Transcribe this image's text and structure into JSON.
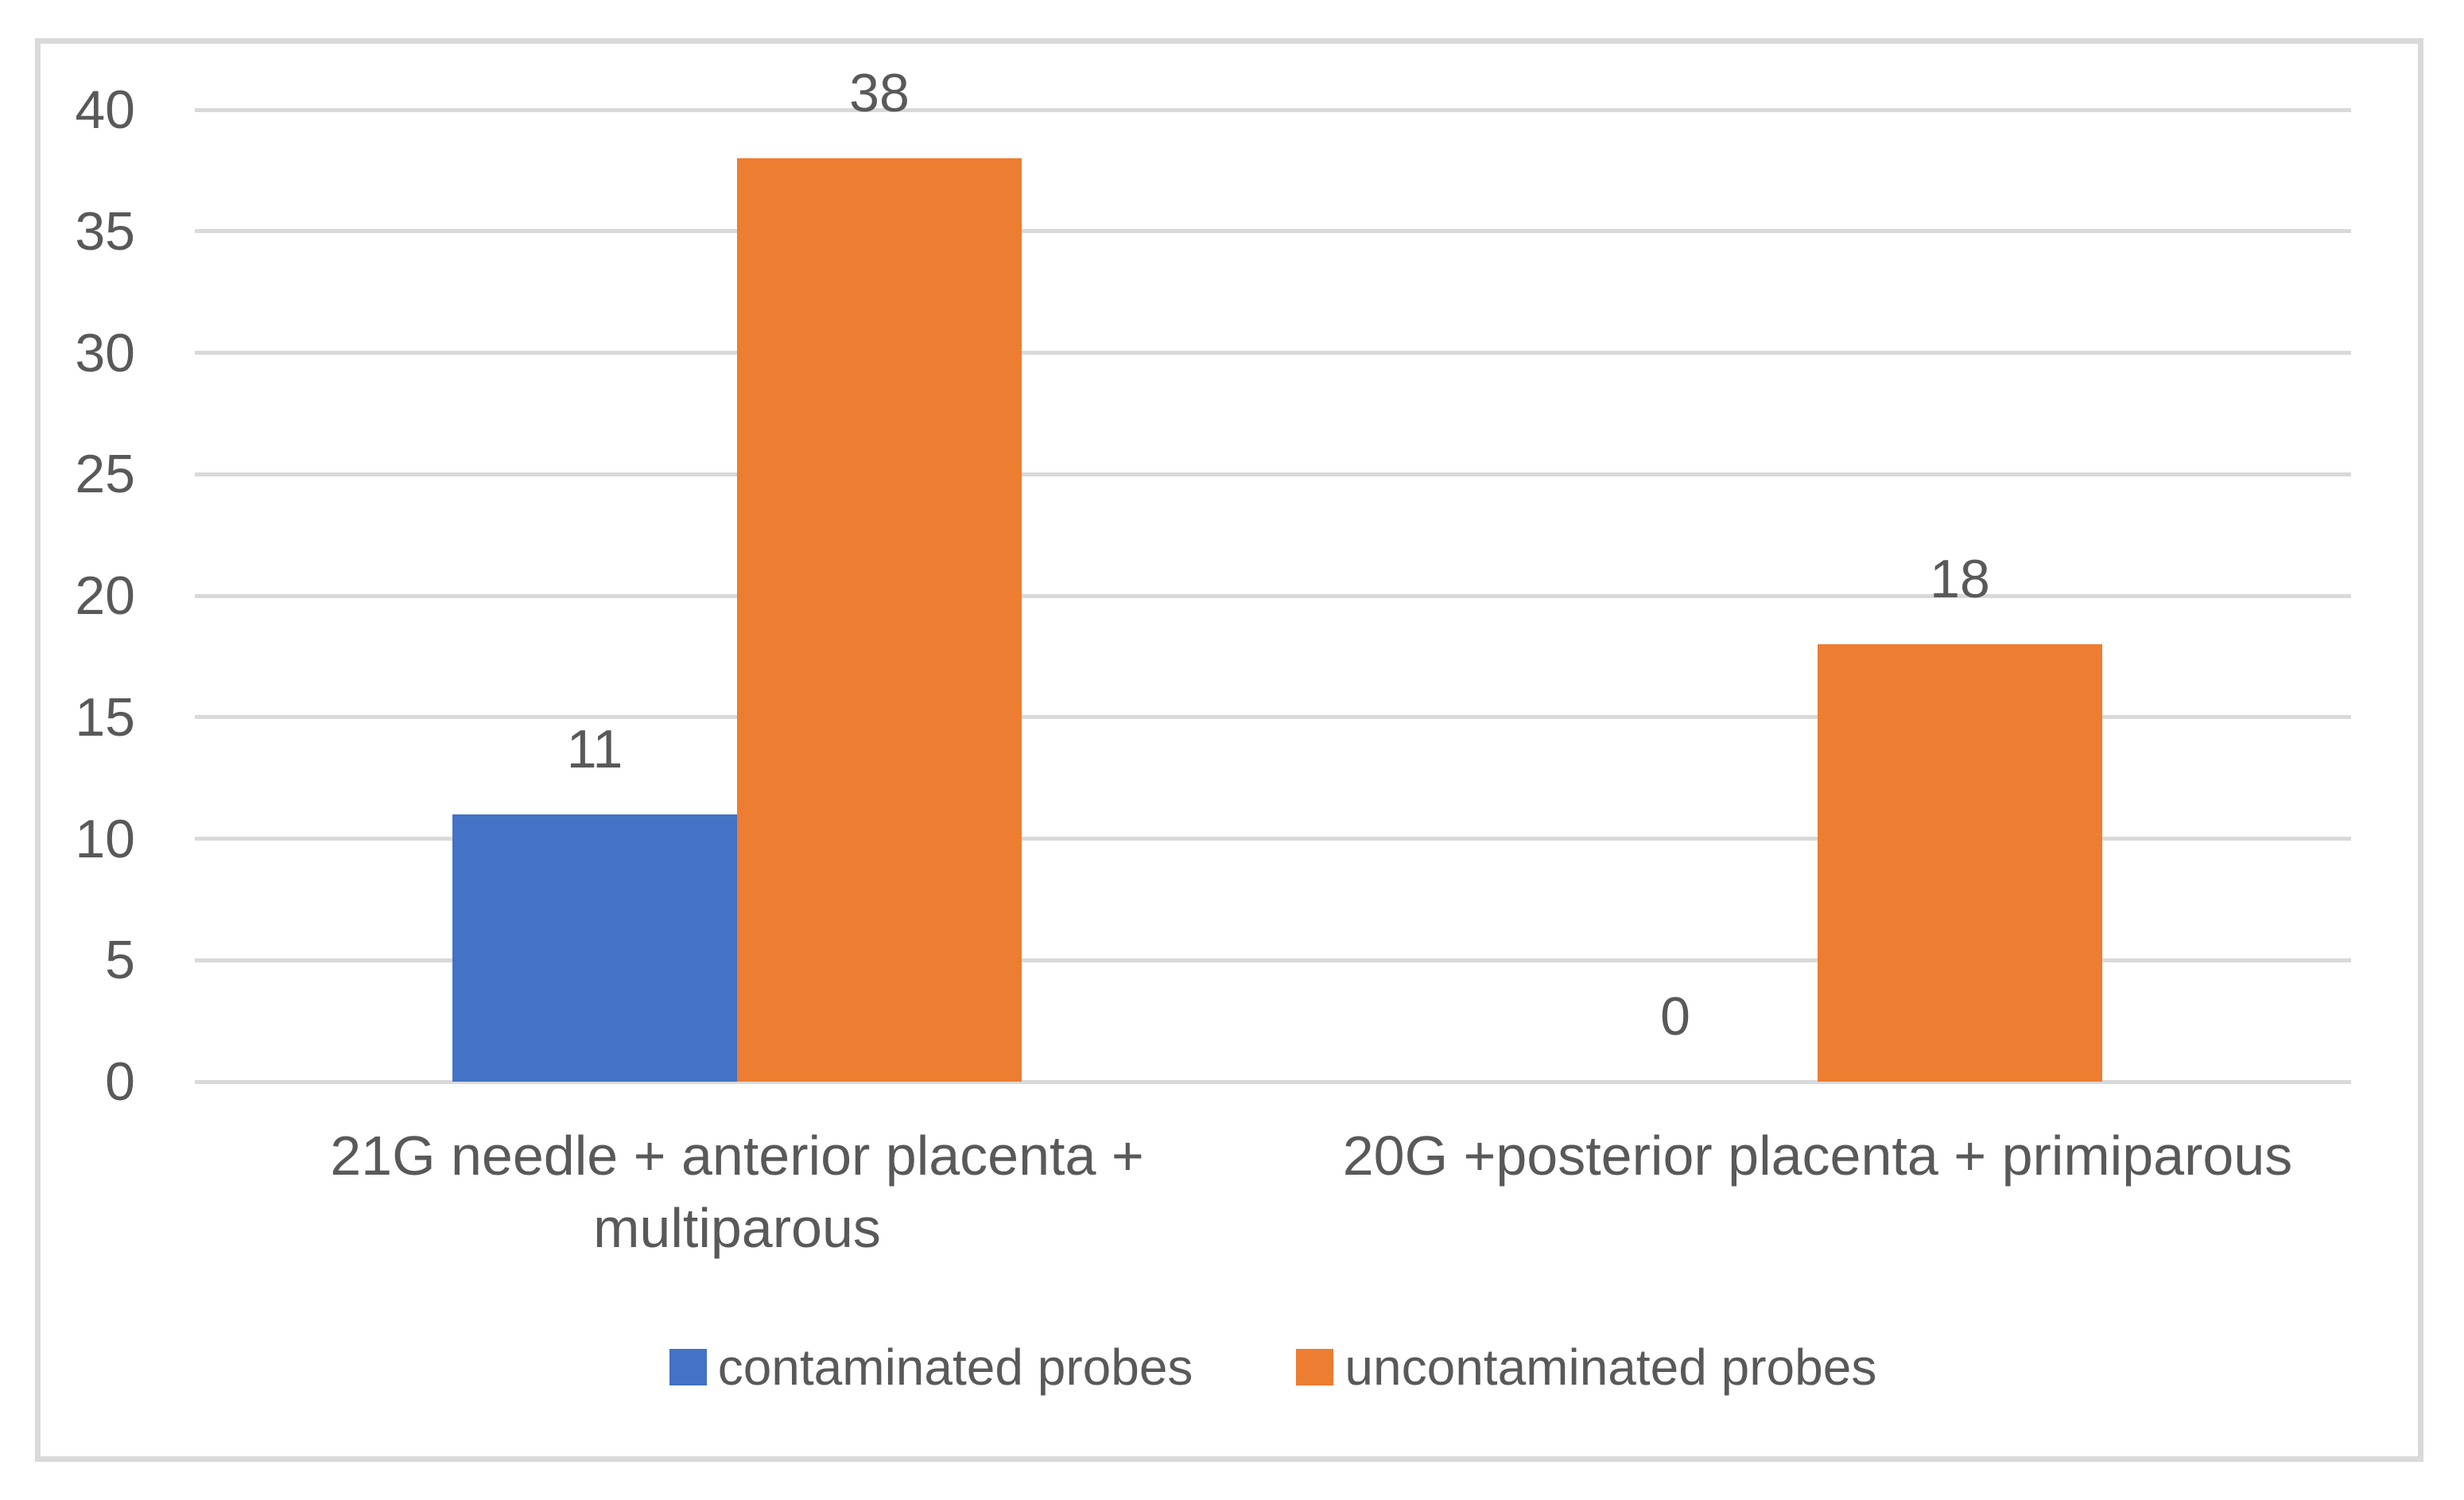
{
  "chart_data": {
    "type": "bar",
    "title": "",
    "categories": [
      [
        "21G needle + anterior placenta +",
        "multiparous"
      ],
      [
        "20G +posterior placenta + primiparous"
      ]
    ],
    "series": [
      {
        "name": "contaminated probes",
        "color": "#4472C4",
        "values": [
          11,
          0
        ]
      },
      {
        "name": "uncontaminated probes",
        "color": "#ED7D31",
        "values": [
          38,
          18
        ]
      }
    ],
    "data_labels_shown": true,
    "yticks": [
      0,
      5,
      10,
      15,
      20,
      25,
      30,
      35,
      40
    ],
    "ylim": [
      0,
      40
    ],
    "xlabel": "",
    "ylabel": "",
    "grid": "horizontal",
    "legend_position": "bottom"
  },
  "colors": {
    "grid": "#D9D9D9",
    "frame": "#D9D9D9",
    "axis_text": "#595959",
    "data_label_text": "#595959",
    "background": "#FFFFFF"
  }
}
